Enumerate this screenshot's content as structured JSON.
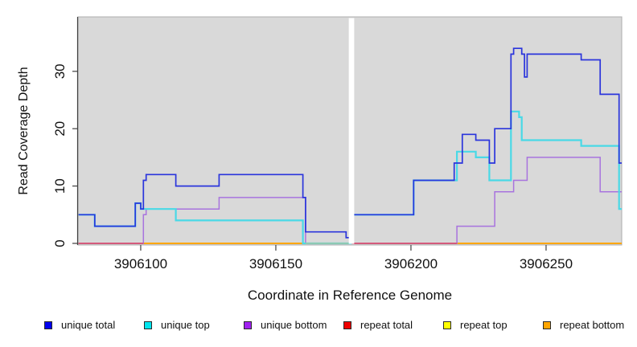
{
  "chart_data": {
    "type": "line",
    "subtype": "step-after-coverage",
    "title": "",
    "xlabel": "Coordinate in Reference Genome",
    "ylabel": "Read Coverage Depth",
    "x_ticks": [
      3906100,
      3906150,
      3906200,
      3906250
    ],
    "y_ticks": [
      0,
      10,
      20,
      30
    ],
    "xlim": [
      3906077,
      3906278
    ],
    "ylim": [
      0,
      39
    ],
    "panel_background": "#D9D9D9",
    "panel_border": "#ADADAD",
    "axis_color": "#404040",
    "gap_region": [
      3906177,
      3906179
    ],
    "series": [
      {
        "name": "repeat total",
        "color": "#EE0000",
        "width": 1.6,
        "points": [
          [
            3906077,
            0
          ],
          [
            3906278,
            0
          ]
        ]
      },
      {
        "name": "repeat top",
        "color": "#FFFF00",
        "width": 1.6,
        "points": [
          [
            3906077,
            0
          ],
          [
            3906278,
            0
          ]
        ]
      },
      {
        "name": "repeat bottom",
        "color": "#FFA500",
        "width": 1.7,
        "points": [
          [
            3906077,
            0
          ],
          [
            3906278,
            0
          ]
        ]
      },
      {
        "name": "unique bottom",
        "color": "#A873DE",
        "width": 1.5,
        "points": [
          [
            3906077,
            0
          ],
          [
            3906101,
            5
          ],
          [
            3906102,
            6
          ],
          [
            3906129,
            8
          ],
          [
            3906161,
            0
          ],
          [
            3906217,
            3
          ],
          [
            3906231,
            9
          ],
          [
            3906238,
            11
          ],
          [
            3906243,
            15
          ],
          [
            3906270,
            9
          ],
          [
            3906278,
            9
          ]
        ]
      },
      {
        "name": "unique top",
        "color": "#49D9E6",
        "width": 2.2,
        "points": [
          [
            3906077,
            5
          ],
          [
            3906083,
            3
          ],
          [
            3906098,
            7
          ],
          [
            3906100,
            6
          ],
          [
            3906113,
            4
          ],
          [
            3906160,
            0
          ],
          [
            3906178,
            5
          ],
          [
            3906201,
            11
          ],
          [
            3906217,
            16
          ],
          [
            3906224,
            15
          ],
          [
            3906229,
            11
          ],
          [
            3906237,
            23
          ],
          [
            3906240,
            22
          ],
          [
            3906241,
            18
          ],
          [
            3906263,
            17
          ],
          [
            3906277,
            6
          ],
          [
            3906278,
            6
          ]
        ]
      },
      {
        "name": "unique total",
        "color": "#2B35DC",
        "width": 1.7,
        "points": [
          [
            3906077,
            5
          ],
          [
            3906083,
            3
          ],
          [
            3906098,
            7
          ],
          [
            3906100,
            6
          ],
          [
            3906101,
            11
          ],
          [
            3906102,
            12
          ],
          [
            3906113,
            10
          ],
          [
            3906129,
            12
          ],
          [
            3906160,
            8
          ],
          [
            3906161,
            2
          ],
          [
            3906176,
            1
          ],
          [
            3906178,
            5
          ],
          [
            3906201,
            11
          ],
          [
            3906216,
            14
          ],
          [
            3906219,
            19
          ],
          [
            3906224,
            18
          ],
          [
            3906229,
            14
          ],
          [
            3906231,
            20
          ],
          [
            3906237,
            33
          ],
          [
            3906238,
            34
          ],
          [
            3906241,
            33
          ],
          [
            3906242,
            29
          ],
          [
            3906243,
            33
          ],
          [
            3906263,
            32
          ],
          [
            3906270,
            26
          ],
          [
            3906277,
            14
          ],
          [
            3906278,
            14
          ]
        ]
      }
    ],
    "baseline_overlays": [
      {
        "name": "unique-bottom-at-zero-left",
        "color": "#D5547E",
        "from": 3906077,
        "to": 3906101
      },
      {
        "name": "unique-top-at-zero-pre-gap",
        "color": "#96C8AC",
        "from": 3906161,
        "to": 3906177
      },
      {
        "name": "unique-bottom-at-zero-post-gap",
        "color": "#D5547E",
        "from": 3906178,
        "to": 3906217
      }
    ]
  },
  "legend": {
    "items": [
      {
        "label": "unique total",
        "color": "#0000EE"
      },
      {
        "label": "unique top",
        "color": "#00E5EE"
      },
      {
        "label": "unique bottom",
        "color": "#A020F0"
      },
      {
        "label": "repeat total",
        "color": "#EE0000"
      },
      {
        "label": "repeat top",
        "color": "#FFFF00"
      },
      {
        "label": "repeat bottom",
        "color": "#FFA500"
      }
    ]
  }
}
